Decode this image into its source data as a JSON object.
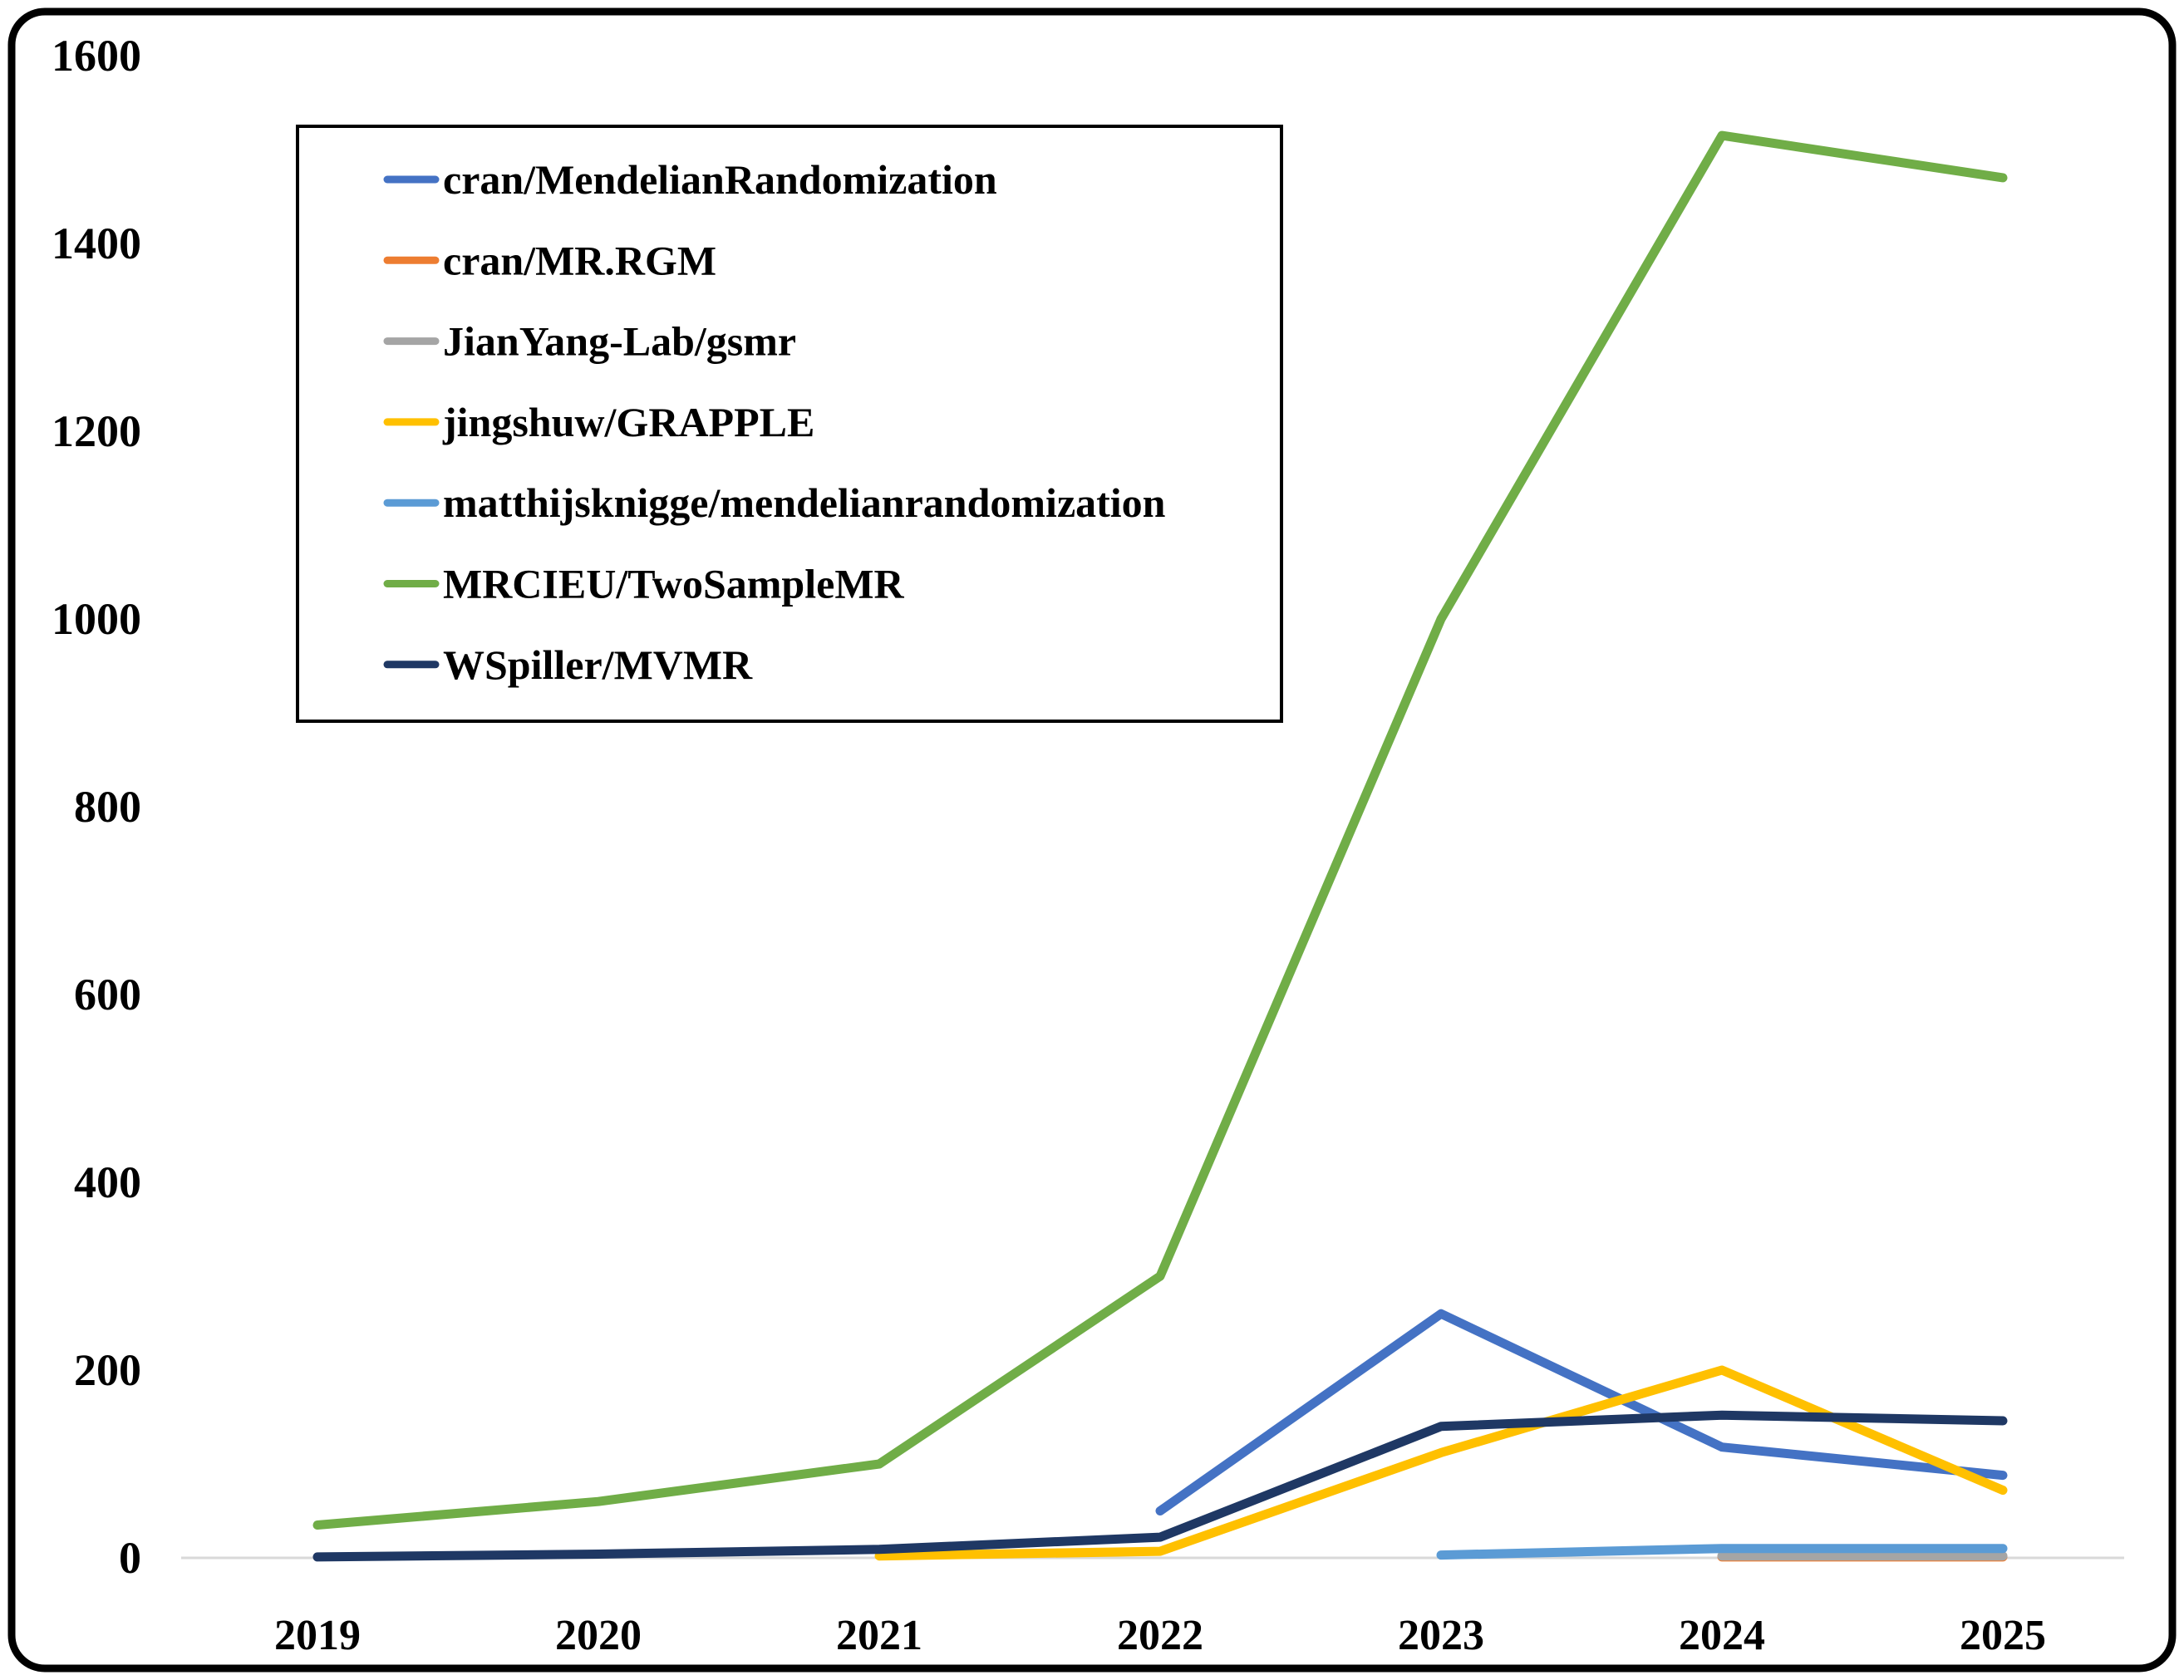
{
  "chart_data": {
    "type": "line",
    "title": "",
    "xlabel": "",
    "ylabel": "",
    "x": [
      2019,
      2020,
      2021,
      2022,
      2023,
      2024,
      2025
    ],
    "ylim": [
      0,
      1600
    ],
    "ytick_step": 200,
    "yticks": [
      0,
      200,
      400,
      600,
      800,
      1000,
      1200,
      1400,
      1600
    ],
    "grid": "zero-line-only",
    "legend_position": "top-left",
    "series": [
      {
        "name": "cran/MendelianRandomization",
        "color": "#4472C4",
        "values": [
          null,
          null,
          null,
          50,
          260,
          118,
          88
        ]
      },
      {
        "name": "cran/MR.RGM",
        "color": "#ED7D31",
        "values": [
          null,
          null,
          null,
          null,
          null,
          1,
          1
        ]
      },
      {
        "name": "JianYang-Lab/gsmr",
        "color": "#A5A5A5",
        "values": [
          null,
          null,
          null,
          null,
          null,
          2,
          2
        ]
      },
      {
        "name": "jingshuw/GRAPPLE",
        "color": "#FFC000",
        "values": [
          null,
          null,
          2,
          7,
          112,
          200,
          72
        ]
      },
      {
        "name": "matthijsknigge/mendelianrandomization",
        "color": "#5B9BD5",
        "values": [
          null,
          null,
          null,
          null,
          3,
          10,
          10
        ]
      },
      {
        "name": "MRCIEU/TwoSampleMR",
        "color": "#70AD47",
        "values": [
          35,
          60,
          100,
          300,
          1000,
          1515,
          1470
        ]
      },
      {
        "name": "WSpiller/MVMR",
        "color": "#1F3864",
        "values": [
          1,
          4,
          9,
          22,
          140,
          152,
          146
        ]
      }
    ],
    "colors": {
      "grid_line": "#D9D9D9",
      "border": "#000000",
      "background": "#FFFFFF"
    }
  }
}
